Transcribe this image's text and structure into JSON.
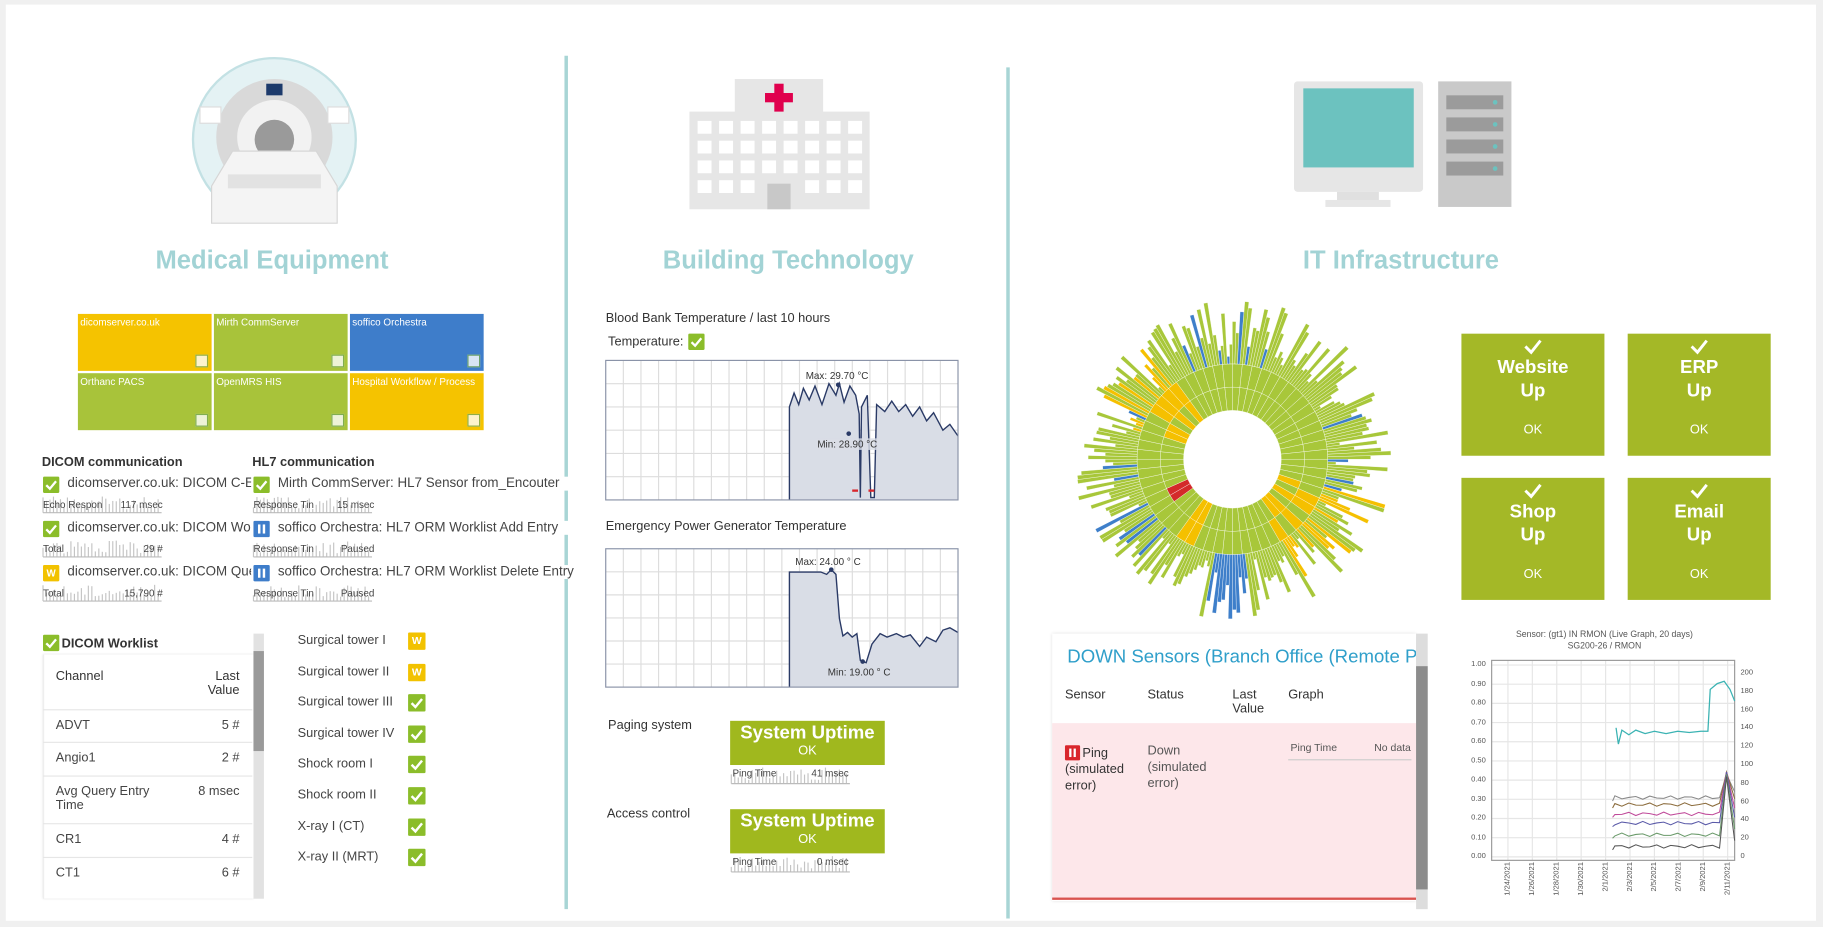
{
  "medical": {
    "title": "Medical Equipment",
    "tiles": [
      {
        "name": "dicomserver.co.uk",
        "color": "#f5c300"
      },
      {
        "name": "Mirth CommServer",
        "color": "#a8c33a"
      },
      {
        "name": "soffico Orchestra",
        "color": "#3e7dca"
      },
      {
        "name": "Orthanc PACS",
        "color": "#a8c33a"
      },
      {
        "name": "OpenMRS HIS",
        "color": "#a8c33a"
      },
      {
        "name": "Hospital Workflow / Process",
        "color": "#f5c300"
      }
    ],
    "dicom": {
      "header": "DICOM communication",
      "items": [
        {
          "name": "dicomserver.co.uk: DICOM C-EC",
          "channel": "Echo Respon",
          "value": "117 msec"
        },
        {
          "name": "dicomserver.co.uk: DICOM Work",
          "channel": "Total",
          "value": "29 #"
        },
        {
          "name": "dicomserver.co.uk: DICOM Quer",
          "channel": "Total",
          "value": "15,790 #",
          "icon": "W"
        }
      ]
    },
    "hl7": {
      "header": "HL7 communication",
      "items": [
        {
          "name": "Mirth CommServer: HL7 Sensor from_Encouter",
          "channel": "Response Tin",
          "value": "15 msec"
        },
        {
          "name": "soffico Orchestra: HL7 ORM Worklist Add Entry",
          "channel": "Response Tin",
          "value": "Paused",
          "icon": "pause"
        },
        {
          "name": "soffico Orchestra: HL7 ORM Worklist Delete Entry",
          "channel": "Response Tin",
          "value": "Paused",
          "icon": "pause"
        }
      ]
    },
    "worklist": {
      "title": "DICOM Worklist",
      "headers": [
        "Channel",
        "Last Value"
      ],
      "rows": [
        [
          "ADVT",
          "5 #"
        ],
        [
          "Angio1",
          "2 #"
        ],
        [
          "Avg Query Entry Time",
          "8 msec"
        ],
        [
          "CR1",
          "4 #"
        ],
        [
          "CT1",
          "6 #"
        ]
      ]
    },
    "rooms": [
      {
        "name": "Surgical tower I",
        "icon": "W"
      },
      {
        "name": "Surgical tower II",
        "icon": "W"
      },
      {
        "name": "Surgical tower III"
      },
      {
        "name": "Surgical tower IV"
      },
      {
        "name": "Shock room I"
      },
      {
        "name": "Shock room II"
      },
      {
        "name": "X-ray I (CT)"
      },
      {
        "name": "X-ray II (MRT)"
      }
    ]
  },
  "building": {
    "title": "Building Technology",
    "blood_bank": {
      "title": "Blood Bank Temperature / last 10 hours",
      "legend": "Temperature:",
      "max": "Max: 29.70 °C",
      "min": "Min: 28.90 °C"
    },
    "generator": {
      "title": "Emergency Power Generator Temperature",
      "max": "Max: 24.00 ° C",
      "min": "Min: 19.00 ° C"
    },
    "uptime": [
      {
        "label": "Paging system",
        "title": "System Uptime",
        "status": "OK",
        "channel": "Ping Time",
        "value": "41 msec"
      },
      {
        "label": "Access control",
        "title": "System Uptime",
        "status": "OK",
        "channel": "Ping Time",
        "value": "0 msec"
      }
    ]
  },
  "it": {
    "title": "IT Infrastructure",
    "status_tiles": [
      {
        "name": "Website",
        "state": "Up",
        "status": "OK"
      },
      {
        "name": "ERP",
        "state": "Up",
        "status": "OK"
      },
      {
        "name": "Shop",
        "state": "Up",
        "status": "OK"
      },
      {
        "name": "Email",
        "state": "Up",
        "status": "OK"
      }
    ],
    "down_sensors": {
      "title": "DOWN Sensors (Branch Office (Remote Pro",
      "headers": [
        "Sensor",
        "Status",
        "Last Value",
        "Graph"
      ],
      "row": {
        "sensor": "Ping (simulated error)",
        "status": "Down (simulated error)",
        "channel": "Ping Time",
        "value": "No data"
      }
    },
    "rmon": {
      "title": "Sensor: (gt1) IN RMON (Live Graph, 20 days)",
      "subtitle": "SG200-26 / RMON",
      "yticks": [
        "0.00",
        "0.10",
        "0.20",
        "0.30",
        "0.40",
        "0.50",
        "0.60",
        "0.70",
        "0.80",
        "0.90",
        "1.00"
      ],
      "y2ticks": [
        "0",
        "20",
        "40",
        "60",
        "80",
        "100",
        "120",
        "140",
        "160",
        "180",
        "200"
      ],
      "dates": [
        "1/24/2021",
        "1/26/2021",
        "1/28/2021",
        "1/30/2021",
        "2/1/2021",
        "2/3/2021",
        "2/5/2021",
        "2/7/2021",
        "2/9/2021",
        "2/11/2021"
      ]
    }
  }
}
